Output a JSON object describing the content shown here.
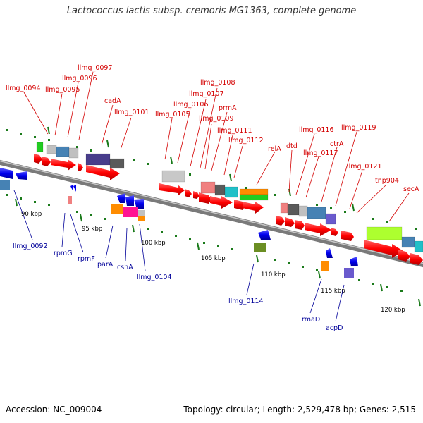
{
  "title": "Lactococcus lactis subsp. cremoris MG1363, complete genome",
  "footer": {
    "accession": "Accession: NC_009004",
    "summary": "Topology: circular; Length: 2,529,478 bp; Genes: 2,515"
  },
  "ticks": [
    "90 kbp",
    "95 kbp",
    "100 kbp",
    "105 kbp",
    "110 kbp",
    "115 kbp",
    "120 kbp"
  ],
  "top_labels": [
    "llmg_0094",
    "llmg_0095",
    "llmg_0096",
    "llmg_0097",
    "cadA",
    "llmg_0101",
    "llmg_0105",
    "llmg_0106",
    "llmg_0107",
    "llmg_0108",
    "llmg_0109",
    "prmA",
    "llmg_0111",
    "llmg_0112",
    "relA",
    "dtd",
    "llmg_0116",
    "llmg_0117",
    "ctrA",
    "llmg_0119",
    "llmg_0121",
    "tnp904",
    "secA"
  ],
  "bottom_labels": [
    "llmg_0092",
    "rpmG",
    "rpmF",
    "parA",
    "cshA",
    "llmg_0104",
    "llmg_0114",
    "rmaD",
    "acpD"
  ],
  "colors": {
    "forward_gene": "#ff0000",
    "reverse_gene": "#0000ee",
    "top_label": "#d40000",
    "bottom_label": "#000099",
    "backbone": "#888888",
    "tick_mark": "#228b22"
  }
}
